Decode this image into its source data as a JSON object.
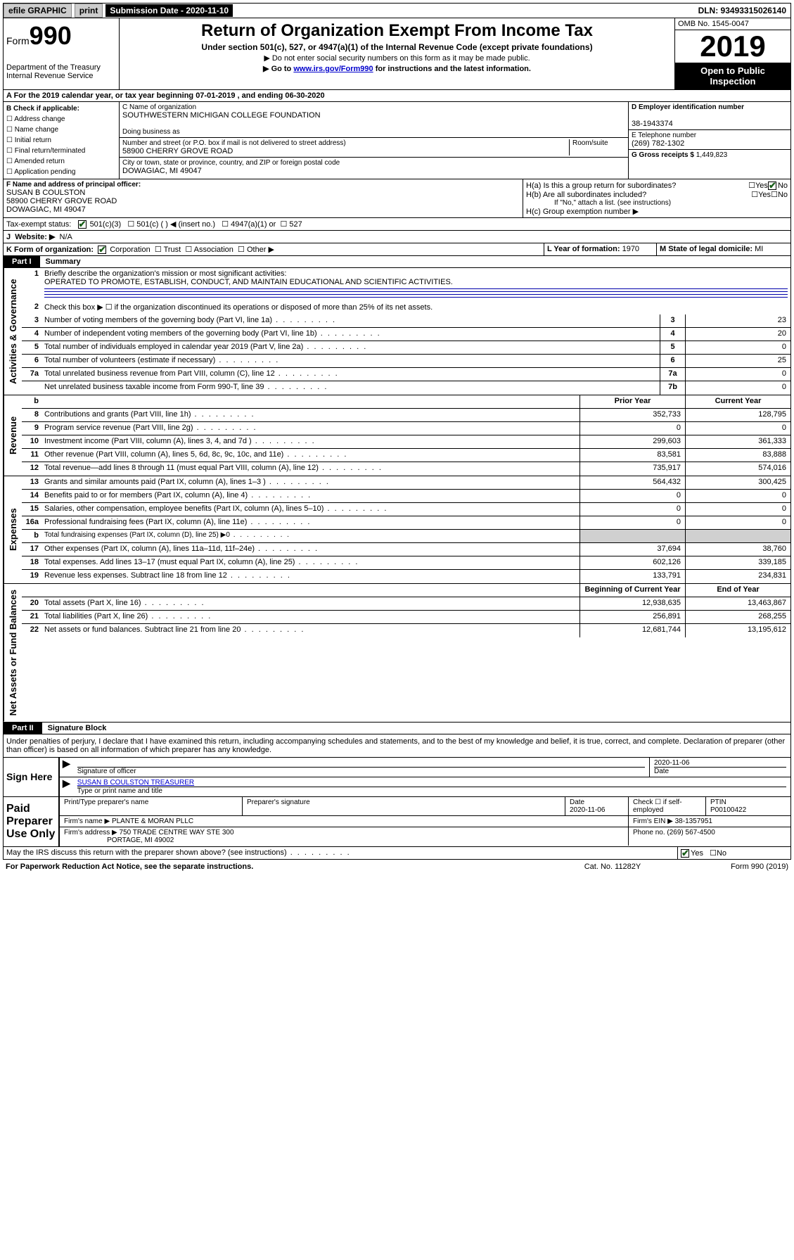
{
  "topbar": {
    "efile": "efile GRAPHIC",
    "print": "print",
    "sub_label": "Submission Date - 2020-11-10",
    "dln": "DLN: 93493315026140"
  },
  "header": {
    "form_label": "Form",
    "form_num": "990",
    "dept": "Department of the Treasury\nInternal Revenue Service",
    "title": "Return of Organization Exempt From Income Tax",
    "subtitle": "Under section 501(c), 527, or 4947(a)(1) of the Internal Revenue Code (except private foundations)",
    "note1": "▶ Do not enter social security numbers on this form as it may be made public.",
    "note2_pre": "▶ Go to ",
    "note2_link": "www.irs.gov/Form990",
    "note2_post": " for instructions and the latest information.",
    "omb": "OMB No. 1545-0047",
    "year": "2019",
    "open": "Open to Public Inspection"
  },
  "line_a": "A For the 2019 calendar year, or tax year beginning 07-01-2019     , and ending 06-30-2020",
  "check_b": {
    "hdr": "B Check if applicable:",
    "items": [
      "Address change",
      "Name change",
      "Initial return",
      "Final return/terminated",
      "Amended return",
      "Application pending"
    ]
  },
  "block_c": {
    "name_label": "C Name of organization",
    "name": "SOUTHWESTERN MICHIGAN COLLEGE FOUNDATION",
    "dba_label": "Doing business as",
    "addr_label": "Number and street (or P.O. box if mail is not delivered to street address)",
    "room_label": "Room/suite",
    "addr": "58900 CHERRY GROVE ROAD",
    "city_label": "City or town, state or province, country, and ZIP or foreign postal code",
    "city": "DOWAGIAC, MI  49047"
  },
  "block_d": {
    "label": "D Employer identification number",
    "val": "38-1943374"
  },
  "block_e": {
    "label": "E Telephone number",
    "val": "(269) 782-1302"
  },
  "block_g": {
    "label": "G Gross receipts $",
    "val": "1,449,823"
  },
  "block_f": {
    "label": "F  Name and address of principal officer:",
    "name": "SUSAN B COULSTON",
    "addr1": "58900 CHERRY GROVE ROAD",
    "addr2": "DOWAGIAC, MI  49047"
  },
  "block_h": {
    "a": "H(a)  Is this a group return for subordinates?",
    "b": "H(b)  Are all subordinates included?",
    "b_note": "If \"No,\" attach a list. (see instructions)",
    "c": "H(c)  Group exemption number ▶",
    "yes": "Yes",
    "no": "No"
  },
  "block_i": {
    "label": "Tax-exempt status:",
    "o1": "501(c)(3)",
    "o2": "501(c) (   ) ◀ (insert no.)",
    "o3": "4947(a)(1) or",
    "o4": "527"
  },
  "block_j": {
    "label": "J",
    "txt": "Website: ▶",
    "val": "N/A"
  },
  "block_k": {
    "label": "K Form of organization:",
    "o1": "Corporation",
    "o2": "Trust",
    "o3": "Association",
    "o4": "Other ▶"
  },
  "block_l": {
    "label": "L Year of formation:",
    "val": "1970"
  },
  "block_m": {
    "label": "M State of legal domicile:",
    "val": "MI"
  },
  "part1": {
    "label": "Part I",
    "title": "Summary"
  },
  "summary": {
    "s1_label": "1",
    "s1_txt": "Briefly describe the organization's mission or most significant activities:",
    "s1_val": "OPERATED TO PROMOTE, ESTABLISH, CONDUCT, AND MAINTAIN EDUCATIONAL AND SCIENTIFIC ACTIVITIES.",
    "s2": "Check this box ▶ ☐  if the organization discontinued its operations or disposed of more than 25% of its net assets.",
    "lines": [
      {
        "n": "3",
        "t": "Number of voting members of the governing body (Part VI, line 1a)",
        "b": "3",
        "v": "23"
      },
      {
        "n": "4",
        "t": "Number of independent voting members of the governing body (Part VI, line 1b)",
        "b": "4",
        "v": "20"
      },
      {
        "n": "5",
        "t": "Total number of individuals employed in calendar year 2019 (Part V, line 2a)",
        "b": "5",
        "v": "0"
      },
      {
        "n": "6",
        "t": "Total number of volunteers (estimate if necessary)",
        "b": "6",
        "v": "25"
      },
      {
        "n": "7a",
        "t": "Total unrelated business revenue from Part VIII, column (C), line 12",
        "b": "7a",
        "v": "0"
      },
      {
        "n": "",
        "t": "Net unrelated business taxable income from Form 990-T, line 39",
        "b": "7b",
        "v": "0"
      }
    ],
    "col_hdr_b": "b",
    "col_prior": "Prior Year",
    "col_current": "Current Year",
    "rev": [
      {
        "n": "8",
        "t": "Contributions and grants (Part VIII, line 1h)",
        "p": "352,733",
        "c": "128,795"
      },
      {
        "n": "9",
        "t": "Program service revenue (Part VIII, line 2g)",
        "p": "0",
        "c": "0"
      },
      {
        "n": "10",
        "t": "Investment income (Part VIII, column (A), lines 3, 4, and 7d )",
        "p": "299,603",
        "c": "361,333"
      },
      {
        "n": "11",
        "t": "Other revenue (Part VIII, column (A), lines 5, 6d, 8c, 9c, 10c, and 11e)",
        "p": "83,581",
        "c": "83,888"
      },
      {
        "n": "12",
        "t": "Total revenue—add lines 8 through 11 (must equal Part VIII, column (A), line 12)",
        "p": "735,917",
        "c": "574,016"
      }
    ],
    "exp": [
      {
        "n": "13",
        "t": "Grants and similar amounts paid (Part IX, column (A), lines 1–3 )",
        "p": "564,432",
        "c": "300,425"
      },
      {
        "n": "14",
        "t": "Benefits paid to or for members (Part IX, column (A), line 4)",
        "p": "0",
        "c": "0"
      },
      {
        "n": "15",
        "t": "Salaries, other compensation, employee benefits (Part IX, column (A), lines 5–10)",
        "p": "0",
        "c": "0"
      },
      {
        "n": "16a",
        "t": "Professional fundraising fees (Part IX, column (A), line 11e)",
        "p": "0",
        "c": "0"
      },
      {
        "n": "b",
        "t": "Total fundraising expenses (Part IX, column (D), line 25) ▶0",
        "p": "",
        "c": "",
        "shade": true,
        "small": true
      },
      {
        "n": "17",
        "t": "Other expenses (Part IX, column (A), lines 11a–11d, 11f–24e)",
        "p": "37,694",
        "c": "38,760"
      },
      {
        "n": "18",
        "t": "Total expenses. Add lines 13–17 (must equal Part IX, column (A), line 25)",
        "p": "602,126",
        "c": "339,185"
      },
      {
        "n": "19",
        "t": "Revenue less expenses. Subtract line 18 from line 12",
        "p": "133,791",
        "c": "234,831"
      }
    ],
    "col_begin": "Beginning of Current Year",
    "col_end": "End of Year",
    "net": [
      {
        "n": "20",
        "t": "Total assets (Part X, line 16)",
        "p": "12,938,635",
        "c": "13,463,867"
      },
      {
        "n": "21",
        "t": "Total liabilities (Part X, line 26)",
        "p": "256,891",
        "c": "268,255"
      },
      {
        "n": "22",
        "t": "Net assets or fund balances. Subtract line 21 from line 20",
        "p": "12,681,744",
        "c": "13,195,612"
      }
    ],
    "vert_gov": "Activities & Governance",
    "vert_rev": "Revenue",
    "vert_exp": "Expenses",
    "vert_net": "Net Assets or Fund Balances"
  },
  "part2": {
    "label": "Part II",
    "title": "Signature Block"
  },
  "decl": "Under penalties of perjury, I declare that I have examined this return, including accompanying schedules and statements, and to the best of my knowledge and belief, it is true, correct, and complete. Declaration of preparer (other than officer) is based on all information of which preparer has any knowledge.",
  "sign": {
    "here": "Sign Here",
    "sig_label": "Signature of officer",
    "date": "2020-11-06",
    "date_label": "Date",
    "name": "SUSAN B COULSTON TREASURER",
    "name_label": "Type or print name and title"
  },
  "prep": {
    "here": "Paid Preparer Use Only",
    "r1": {
      "c1": "Print/Type preparer's name",
      "c2": "Preparer's signature",
      "c3": "Date",
      "c3v": "2020-11-06",
      "c4": "Check ☐ if self-employed",
      "c5": "PTIN",
      "c5v": "P00100422"
    },
    "r2": {
      "c1": "Firm's name    ▶",
      "c1v": "PLANTE & MORAN PLLC",
      "c2": "Firm's EIN ▶",
      "c2v": "38-1357951"
    },
    "r3": {
      "c1": "Firm's address ▶",
      "c1v": "750 TRADE CENTRE WAY STE 300",
      "c1v2": "PORTAGE, MI  49002",
      "c2": "Phone no.",
      "c2v": "(269) 567-4500"
    }
  },
  "discuss": {
    "txt": "May the IRS discuss this return with the preparer shown above? (see instructions)",
    "yes": "Yes",
    "no": "No"
  },
  "footer": {
    "l": "For Paperwork Reduction Act Notice, see the separate instructions.",
    "m": "Cat. No. 11282Y",
    "r": "Form 990 (2019)"
  }
}
